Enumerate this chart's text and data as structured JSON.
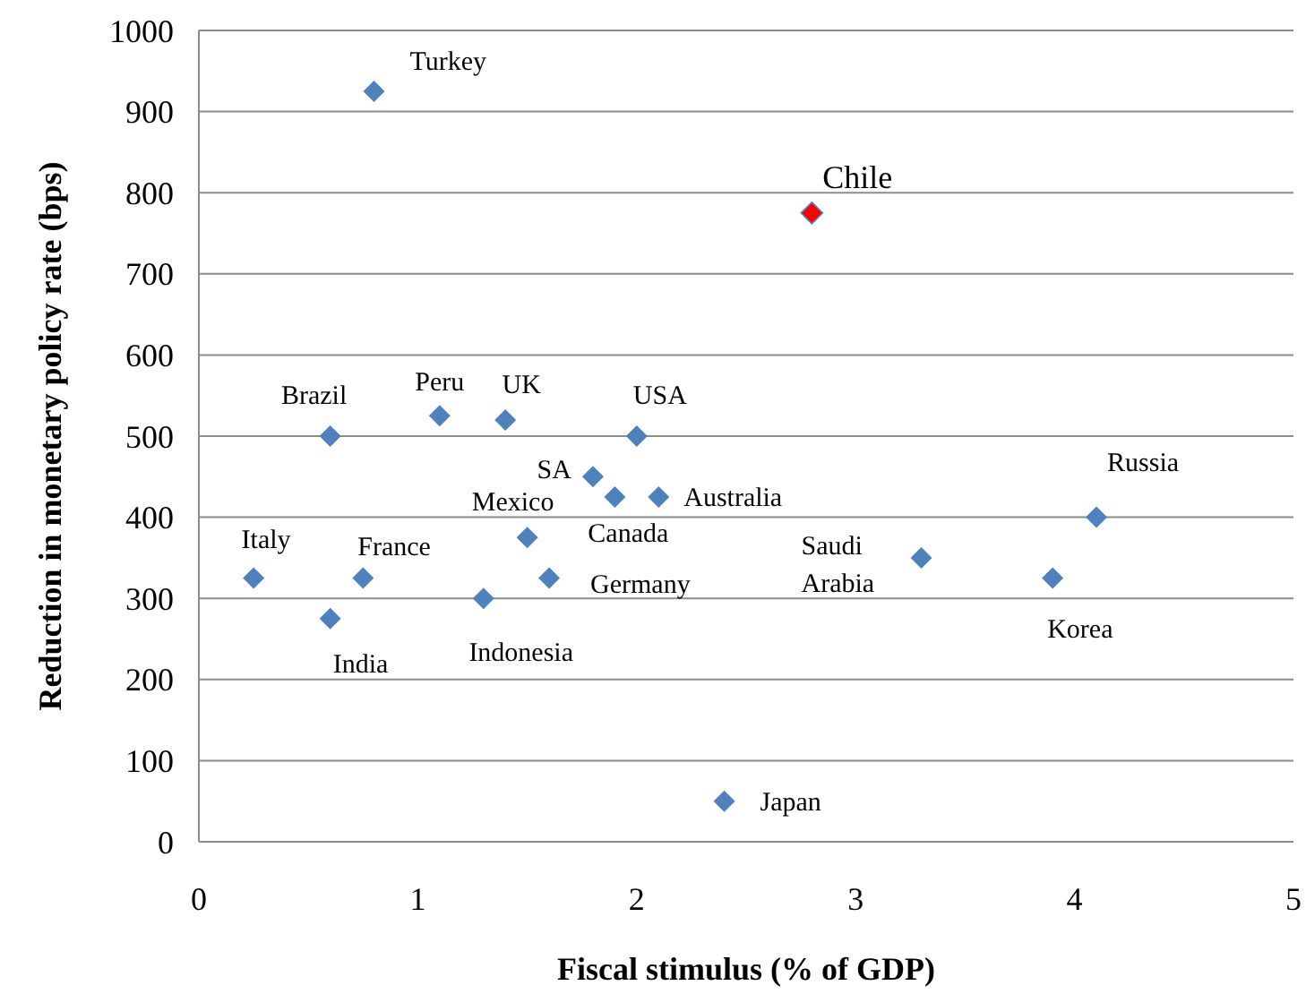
{
  "chart_data": {
    "type": "scatter",
    "xlabel": "Fiscal stimulus (% of GDP)",
    "ylabel": "Reduction in monetary policy rate (bps)",
    "x": [
      0.8,
      2.8,
      0.6,
      1.1,
      1.4,
      2.0,
      1.8,
      1.9,
      2.1,
      1.5,
      0.25,
      0.75,
      1.6,
      1.3,
      0.6,
      2.4,
      4.1,
      3.3,
      3.9
    ],
    "series": [
      {
        "color": "#4f81bd",
        "colors": [
          "#4f81bd",
          "#ff0000",
          "#4f81bd",
          "#4f81bd",
          "#4f81bd",
          "#4f81bd",
          "#4f81bd",
          "#4f81bd",
          "#4f81bd",
          "#4f81bd",
          "#4f81bd",
          "#4f81bd",
          "#4f81bd",
          "#4f81bd",
          "#4f81bd",
          "#4f81bd",
          "#4f81bd",
          "#4f81bd",
          "#4f81bd"
        ],
        "values": [
          925,
          775,
          500,
          525,
          520,
          500,
          450,
          425,
          425,
          375,
          325,
          325,
          325,
          300,
          275,
          50,
          400,
          350,
          325
        ]
      }
    ],
    "annotations": [
      {
        "text": "Turkey",
        "x": 0.8,
        "y": 925
      },
      {
        "text": "Chile",
        "x": 2.8,
        "y": 775
      },
      {
        "text": "Brazil",
        "x": 0.6,
        "y": 500
      },
      {
        "text": "Peru",
        "x": 1.1,
        "y": 525
      },
      {
        "text": "UK",
        "x": 1.4,
        "y": 520
      },
      {
        "text": "USA",
        "x": 2.0,
        "y": 500
      },
      {
        "text": "SA",
        "x": 1.8,
        "y": 450
      },
      {
        "text": "Canada",
        "x": 1.9,
        "y": 425
      },
      {
        "text": "Australia",
        "x": 2.1,
        "y": 425
      },
      {
        "text": "Mexico",
        "x": 1.5,
        "y": 375
      },
      {
        "text": "Italy",
        "x": 0.25,
        "y": 325
      },
      {
        "text": "France",
        "x": 0.75,
        "y": 325
      },
      {
        "text": "Germany",
        "x": 1.6,
        "y": 325
      },
      {
        "text": "Indonesia",
        "x": 1.3,
        "y": 300
      },
      {
        "text": "India",
        "x": 0.6,
        "y": 275
      },
      {
        "text": "Japan",
        "x": 2.4,
        "y": 50
      },
      {
        "text": "Russia",
        "x": 4.1,
        "y": 400
      },
      {
        "text": "Saudi Arabia",
        "x": 3.3,
        "y": 350
      },
      {
        "text": "Korea",
        "x": 3.9,
        "y": 325
      }
    ],
    "xlim": [
      0,
      5
    ],
    "xticks": [
      0,
      1,
      2,
      3,
      4,
      5
    ],
    "ylim": [
      0,
      1000
    ],
    "yticks": [
      0,
      100,
      200,
      300,
      400,
      500,
      600,
      700,
      800,
      900,
      1000
    ],
    "grid": "y",
    "marker": "diamond"
  }
}
